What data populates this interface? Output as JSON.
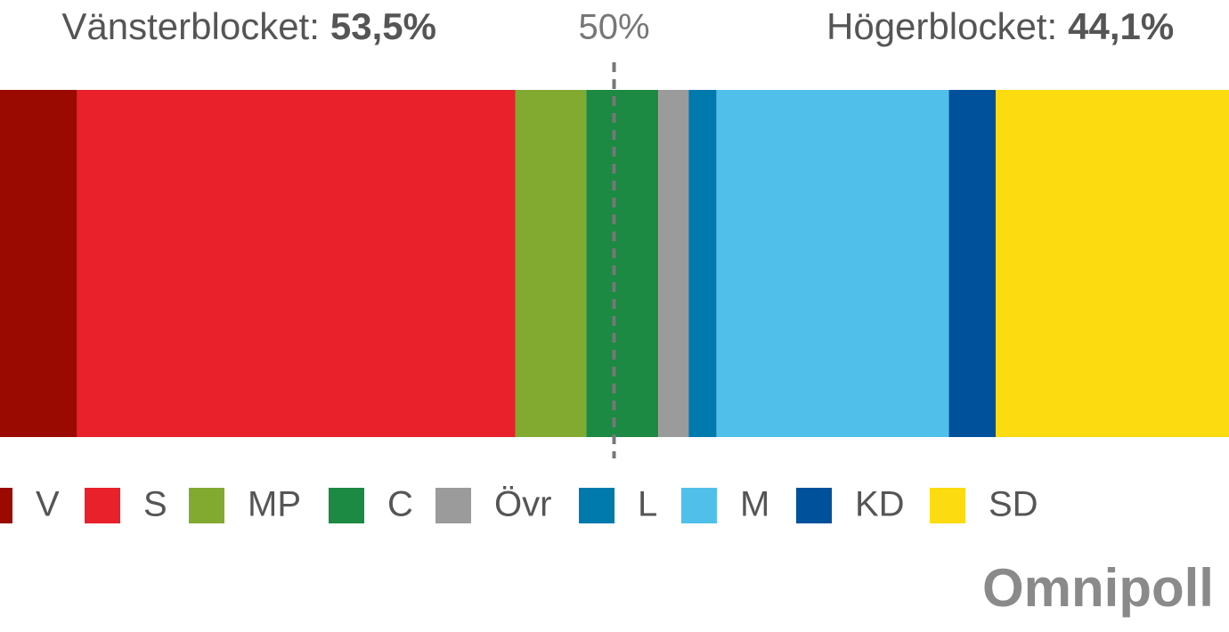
{
  "chart_data": {
    "type": "stacked_bar",
    "categories": [
      "V",
      "S",
      "MP",
      "C",
      "Övr",
      "L",
      "M",
      "KD",
      "SD"
    ],
    "values": [
      7.5,
      34.7,
      5.6,
      5.7,
      2.4,
      2.2,
      18.4,
      3.7,
      19.8
    ],
    "colors": [
      "#9b0a00",
      "#e8212a",
      "#82aa30",
      "#1c8a43",
      "#9b9b9b",
      "#0079ad",
      "#50c0ea",
      "#00519c",
      "#fcdb10"
    ],
    "xlim": [
      0,
      100
    ],
    "left_block": {
      "label": "Vänsterblocket:",
      "value": 53.5,
      "value_label": "53,5%"
    },
    "right_block": {
      "label": "Högerblocket:",
      "value": 44.1,
      "value_label": "44,1%"
    },
    "reference_line": {
      "value": 50,
      "label": "50%"
    },
    "logo": "Omnipoll"
  }
}
